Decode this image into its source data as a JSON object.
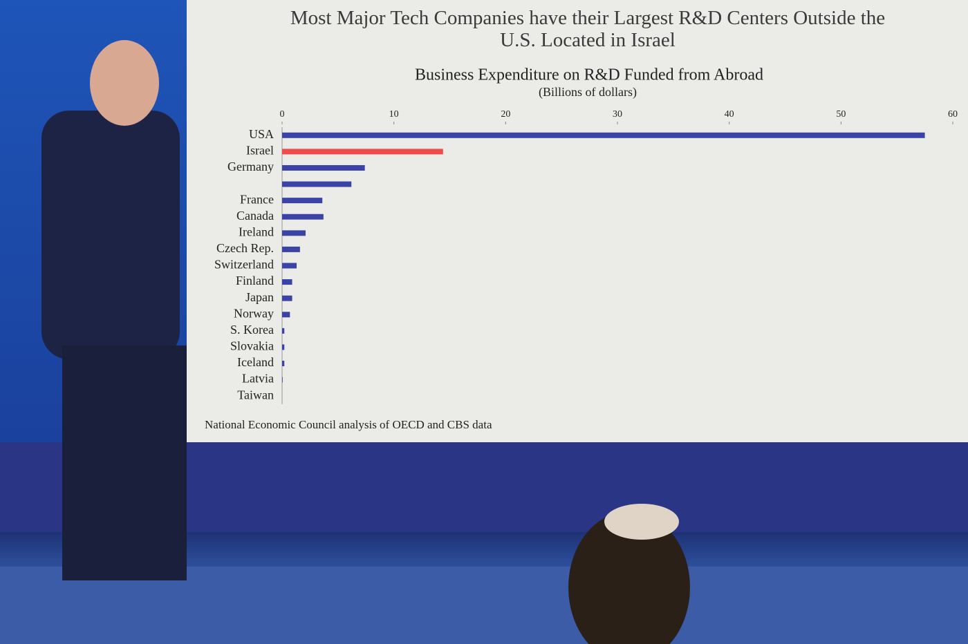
{
  "chart_data": {
    "type": "bar",
    "orientation": "horizontal",
    "title": "Most Major Tech Companies have their Largest R&D Centers Outside the U.S. Located in Israel",
    "subtitle": "Business Expenditure on R&D Funded from Abroad",
    "unit_label": "(Billions of dollars)",
    "source": "National Economic Council analysis of OECD and CBS data",
    "categories": [
      "USA",
      "Israel",
      "Germany",
      null,
      "France",
      "Canada",
      "Ireland",
      "Czech Rep.",
      "Switzerland",
      "Finland",
      "Japan",
      "Norway",
      "S. Korea",
      "Slovakia",
      "Iceland",
      "Latvia",
      "Taiwan"
    ],
    "values": [
      57.5,
      14.4,
      7.4,
      6.2,
      3.6,
      3.7,
      2.1,
      1.6,
      1.3,
      0.9,
      0.9,
      0.7,
      0.2,
      0.2,
      0.2,
      0.05,
      0
    ],
    "colors": [
      "#3b44a6",
      "#f04a4a",
      "#3b44a6",
      "#3b44a6",
      "#3b44a6",
      "#3b44a6",
      "#3b44a6",
      "#3b44a6",
      "#3b44a6",
      "#3b44a6",
      "#3b44a6",
      "#3b44a6",
      "#3b44a6",
      "#3b44a6",
      "#3b44a6",
      "#3b44a6",
      "#3b44a6"
    ],
    "xlim": [
      0,
      60
    ],
    "xticks": [
      0,
      10,
      20,
      30,
      40,
      50,
      60
    ],
    "grid": false
  }
}
